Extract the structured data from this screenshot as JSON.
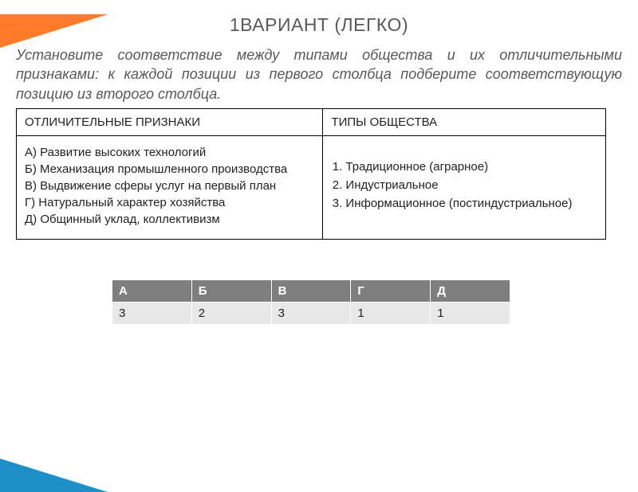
{
  "title": "1ВАРИАНТ (ЛЕГКО)",
  "instruction": "Установите соответствие между типами общества и их отличительными признаками: к каждой позиции из первого столбца подберите соответствующую позицию из второго столбца.",
  "mainTable": {
    "header": {
      "left": "ОТЛИЧИТЕЛЬНЫЕ ПРИЗНАКИ",
      "right": "ТИПЫ ОБЩЕСТВА"
    },
    "leftItems": {
      "a": "А) Развитие высоких технологий",
      "b": "Б) Механизация промышленного производства",
      "v": "В) Выдвижение сферы услуг на первый план",
      "g": "Г) Натуральный характер хозяйства",
      "d": "Д) Общинный уклад, коллективизм"
    },
    "rightItems": {
      "i1": "Традиционное (аграрное)",
      "i2": "Индустриальное",
      "i3": "Информационное (постиндустриальное)"
    }
  },
  "answerTable": {
    "headers": {
      "a": "А",
      "b": "Б",
      "v": "В",
      "g": "Г",
      "d": "Д"
    },
    "values": {
      "a": "3",
      "b": "2",
      "v": "3",
      "g": "1",
      "d": "1"
    }
  },
  "colors": {
    "accentOrange": "#ff7a29",
    "accentBlue": "#1e90c8",
    "textGray": "#595959",
    "tableHeaderBg": "#7e7e7e",
    "tableRowBg": "#e8e8e8"
  }
}
